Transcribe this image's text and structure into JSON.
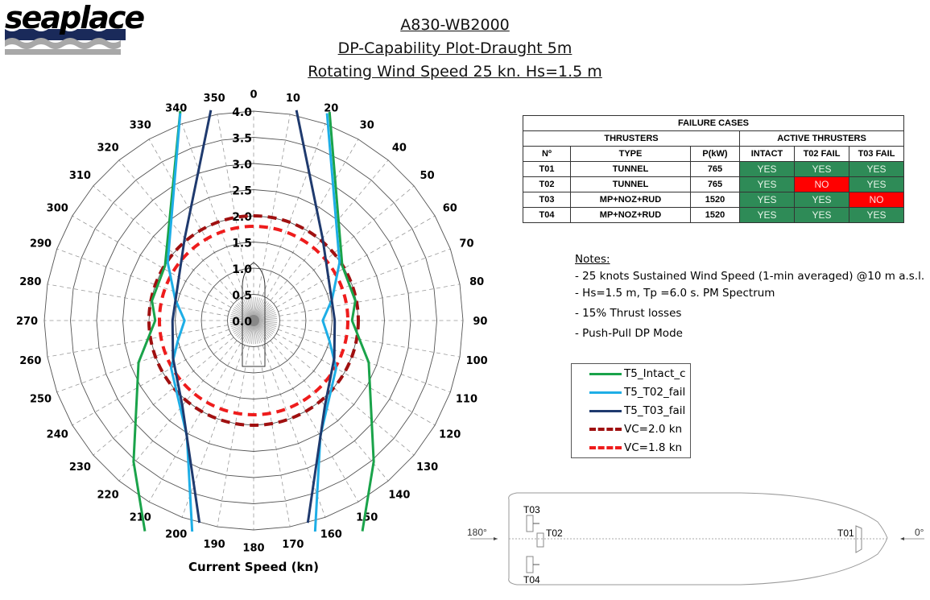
{
  "logo": {
    "text": "seaplace",
    "navy": "#1a2a5a",
    "gray": "#a8a8a8"
  },
  "title": {
    "line1": "A830-WB2000",
    "line2": "DP-Capability Plot-Draught 5m",
    "line3": "Rotating Wind Speed 25 kn. Hs=1.5 m"
  },
  "chart_data": {
    "type": "polar-line",
    "title": "DP-Capability Plot-Draught 5m",
    "xlabel": "Current Speed (kn)",
    "radial_axis": {
      "min": 0.0,
      "max": 4.0,
      "step": 0.5,
      "ticks": [
        "0.0",
        "0.5",
        "1.0",
        "1.5",
        "2.0",
        "2.5",
        "3.0",
        "3.5",
        "4.0"
      ]
    },
    "angular_axis": {
      "step_deg": 10,
      "direction": "clockwise",
      "zero": "top",
      "ticks": [
        "0",
        "10",
        "20",
        "30",
        "40",
        "50",
        "60",
        "70",
        "80",
        "90",
        "100",
        "110",
        "120",
        "130",
        "140",
        "150",
        "160",
        "170",
        "180",
        "190",
        "200",
        "210",
        "220",
        "230",
        "240",
        "250",
        "260",
        "270",
        "280",
        "290",
        "300",
        "310",
        "320",
        "330",
        "340",
        "350"
      ]
    },
    "grid": true,
    "series": [
      {
        "name": "T5_Intact_c",
        "color": "#1aa34a",
        "style": "solid",
        "points": [
          [
            20.0,
            4.24
          ],
          [
            58.3,
            1.99
          ],
          [
            79,
            1.98
          ],
          [
            90,
            1.88
          ],
          [
            110,
            2.34
          ],
          [
            139.6,
            3.54
          ],
          [
            152.7,
            4.53
          ],
          [
            207.3,
            4.53
          ],
          [
            220.4,
            3.54
          ],
          [
            250,
            2.34
          ],
          [
            270,
            1.88
          ],
          [
            281,
            1.98
          ],
          [
            301.7,
            1.99
          ],
          [
            340.7,
            4.24
          ]
        ]
      },
      {
        "name": "T5_T02_fail",
        "color": "#1eaee6",
        "style": "solid",
        "points": [
          [
            19.5,
            4.2
          ],
          [
            56,
            1.98
          ],
          [
            75,
            1.55
          ],
          [
            90,
            1.32
          ],
          [
            105,
            1.5
          ],
          [
            120,
            1.82
          ],
          [
            150,
            2.55
          ],
          [
            164,
            4.25
          ],
          [
            196,
            4.25
          ],
          [
            210,
            2.55
          ],
          [
            240,
            1.82
          ],
          [
            255,
            1.5
          ],
          [
            270,
            1.32
          ],
          [
            285,
            1.55
          ],
          [
            304,
            1.98
          ],
          [
            340.5,
            4.2
          ]
        ]
      },
      {
        "name": "T5_T03_fail",
        "color": "#1f3a6e",
        "style": "solid",
        "points": [
          [
            11.5,
            4.1
          ],
          [
            40,
            2.05
          ],
          [
            65,
            1.6
          ],
          [
            90,
            1.55
          ],
          [
            115,
            1.7
          ],
          [
            140,
            2.12
          ],
          [
            165,
            4.0
          ],
          [
            195,
            4.0
          ],
          [
            220,
            2.12
          ],
          [
            245,
            1.7
          ],
          [
            270,
            1.55
          ],
          [
            295,
            1.6
          ],
          [
            320,
            2.05
          ],
          [
            348.5,
            4.1
          ]
        ]
      },
      {
        "name": "VC=2.0 kn",
        "color": "#a01010",
        "style": "dashed",
        "circle_radius": 2.0
      },
      {
        "name": "VC=1.8 kn",
        "color": "#ee1c1c",
        "style": "dashed",
        "circle_radius": 1.8
      }
    ],
    "legend_position": "right"
  },
  "failure_table": {
    "title": "FAILURE CASES",
    "group_thrusters": "THRUSTERS",
    "group_active": "ACTIVE THRUSTERS",
    "columns": [
      "Nº",
      "TYPE",
      "P(kW)",
      "INTACT",
      "T02 FAIL",
      "T03 FAIL"
    ],
    "rows": [
      {
        "no": "T01",
        "type": "TUNNEL",
        "power": "765",
        "intact": "YES",
        "t02": "YES",
        "t03": "YES"
      },
      {
        "no": "T02",
        "type": "TUNNEL",
        "power": "765",
        "intact": "YES",
        "t02": "NO",
        "t03": "YES"
      },
      {
        "no": "T03",
        "type": "MP+NOZ+RUD",
        "power": "1520",
        "intact": "YES",
        "t02": "YES",
        "t03": "NO"
      },
      {
        "no": "T04",
        "type": "MP+NOZ+RUD",
        "power": "1520",
        "intact": "YES",
        "t02": "YES",
        "t03": "YES"
      }
    ],
    "colors": {
      "yes": "#2e8b57",
      "no": "#ff0000"
    }
  },
  "notes": {
    "heading": "Notes:",
    "items": [
      "- 25 knots Sustained Wind Speed (1-min averaged) @10 m a.s.l.",
      "- Hs=1.5 m, Tp =6.0 s. PM Spectrum",
      "- 15% Thrust losses",
      "- Push-Pull DP Mode"
    ]
  },
  "legend": {
    "items": [
      {
        "label": "T5_Intact_c",
        "color": "#1aa34a",
        "style": "solid"
      },
      {
        "label": "T5_T02_fail",
        "color": "#1eaee6",
        "style": "solid"
      },
      {
        "label": "T5_T03_fail",
        "color": "#1f3a6e",
        "style": "solid"
      },
      {
        "label": "VC=2.0 kn",
        "color": "#a01010",
        "style": "dashed"
      },
      {
        "label": "VC=1.8 kn",
        "color": "#ee1c1c",
        "style": "dashed"
      }
    ]
  },
  "ship_diagram": {
    "stern_label": "180°",
    "bow_label": "0°",
    "thrusters": [
      "T03",
      "T02",
      "T01",
      "T04"
    ]
  }
}
